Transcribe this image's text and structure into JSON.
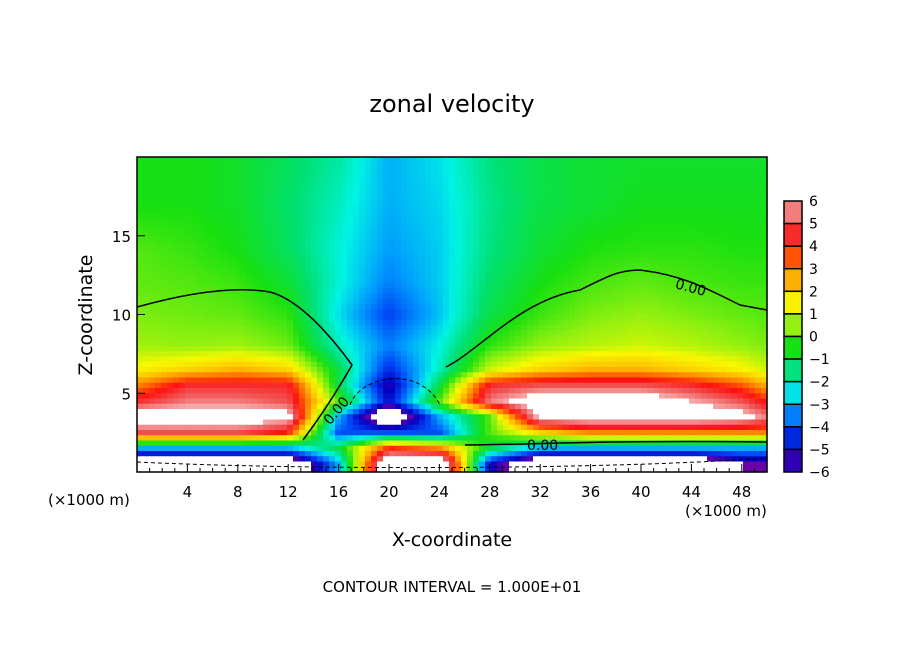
{
  "chart_data": {
    "type": "heatmap",
    "title": "zonal velocity",
    "xlabel": "X-coordinate",
    "ylabel": "Z-coordinate",
    "x_unit_left": "(×1000 m)",
    "x_unit_right": "(×1000 m)",
    "footer": "CONTOUR INTERVAL = 1.000E+01",
    "xlim": [
      0,
      50
    ],
    "ylim": [
      0,
      20
    ],
    "x_ticks": [
      4,
      8,
      12,
      16,
      20,
      24,
      28,
      32,
      36,
      40,
      44,
      48
    ],
    "y_ticks": [
      5,
      10,
      15
    ],
    "contour_labels": [
      "0.00",
      "0.00",
      "0.00"
    ],
    "colorbar": {
      "levels": [
        6,
        5,
        4,
        3,
        2,
        1,
        0,
        -1,
        -2,
        -3,
        -4,
        -5,
        -6
      ],
      "colors": [
        "#f6a8a8",
        "#f05656",
        "#ff1010",
        "#ff7000",
        "#ffc000",
        "#f8f800",
        "#90f010",
        "#18e010",
        "#00e070",
        "#00f4e4",
        "#0098ff",
        "#0040f4",
        "#0000c0",
        "#6a00a8"
      ],
      "out_of_range_color": "#ffffff"
    },
    "grid": {
      "x": [
        0,
        4,
        8,
        12,
        16,
        20,
        24,
        28,
        32,
        36,
        40,
        44,
        48,
        50
      ],
      "z": [
        19.5,
        17,
        14,
        12,
        10,
        8,
        6.5,
        5.5,
        4.5,
        3.5,
        2.5,
        1.5,
        0.5
      ],
      "values": [
        [
          -0.5,
          -0.5,
          -0.7,
          -1.2,
          -1.8,
          -3.0,
          -2.5,
          -1.5,
          -1.0,
          -0.8,
          -0.7,
          -0.7,
          -0.7,
          -0.7
        ],
        [
          -0.5,
          -0.5,
          -0.7,
          -1.3,
          -2.0,
          -3.0,
          -2.6,
          -1.6,
          -1.0,
          -0.8,
          -0.6,
          -0.6,
          -0.6,
          -0.6
        ],
        [
          0.0,
          -0.2,
          -0.5,
          -1.2,
          -2.2,
          -3.2,
          -2.7,
          -1.5,
          -0.8,
          -0.4,
          -0.3,
          -0.3,
          -0.4,
          -0.4
        ],
        [
          0.1,
          0.0,
          -0.2,
          -0.8,
          -2.2,
          -3.5,
          -2.7,
          -1.3,
          -0.5,
          -0.1,
          0.1,
          -0.1,
          -0.2,
          -0.2
        ],
        [
          0.3,
          0.2,
          0.1,
          -0.3,
          -2.5,
          -4.2,
          -2.8,
          -1.0,
          -0.2,
          0.3,
          0.5,
          0.3,
          0.1,
          0.0
        ],
        [
          0.6,
          0.5,
          0.6,
          0.2,
          -2.0,
          -3.5,
          -2.3,
          -0.3,
          0.5,
          0.8,
          1.0,
          0.8,
          0.5,
          0.3
        ],
        [
          1.5,
          2.0,
          2.5,
          2.0,
          -1.0,
          -4.5,
          -2.0,
          1.0,
          2.0,
          2.5,
          2.5,
          2.0,
          1.5,
          1.0
        ],
        [
          3.0,
          4.5,
          4.5,
          4.5,
          -1.0,
          -5.5,
          -1.0,
          4.5,
          5.0,
          5.0,
          5.0,
          4.5,
          3.5,
          2.5
        ],
        [
          4.5,
          5.5,
          5.5,
          5.0,
          0.0,
          -5.0,
          0.0,
          5.5,
          7.0,
          7.0,
          7.0,
          6.0,
          5.0,
          4.0
        ],
        [
          7.0,
          7.0,
          7.0,
          6.5,
          -3.0,
          -8.0,
          -3.0,
          0.0,
          6.5,
          7.0,
          7.0,
          7.0,
          6.5,
          5.5
        ],
        [
          5.0,
          5.0,
          5.0,
          4.0,
          -4.0,
          -4.0,
          -4.0,
          0.0,
          2.0,
          3.0,
          3.0,
          3.0,
          3.0,
          3.0
        ],
        [
          -3.0,
          -3.0,
          -3.0,
          -3.0,
          -1.0,
          4.0,
          3.0,
          -1.0,
          -3.0,
          -3.0,
          -3.0,
          -3.0,
          -3.0,
          -3.0
        ],
        [
          -8.0,
          -8.0,
          -8.0,
          -8.0,
          -3.0,
          8.0,
          8.0,
          -5.0,
          -8.0,
          -8.0,
          -8.0,
          -8.0,
          -6.0,
          -6.0
        ]
      ]
    }
  }
}
